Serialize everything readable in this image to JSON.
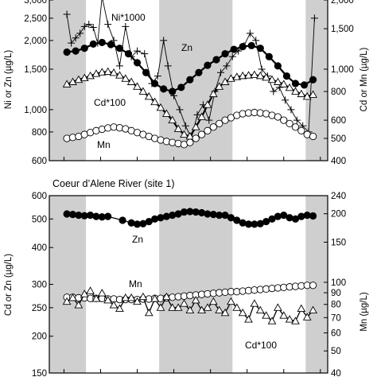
{
  "chart_data": [
    {
      "type": "line",
      "title": "",
      "log_scale": true,
      "shaded_bands_x": [
        [
          0,
          2.5
        ],
        [
          7.5,
          12.5
        ],
        [
          17.5,
          19
        ]
      ],
      "x_range": [
        0,
        19
      ],
      "left_axis": {
        "label": "Ni or Zn (µg/L)",
        "ylim": [
          600,
          3000
        ],
        "ticks": [
          600,
          800,
          1000,
          1500,
          2000,
          2500,
          3000
        ],
        "tick_labels": [
          "600",
          "800",
          "1,000",
          "1,500",
          "2,000",
          "2,500",
          "3,000"
        ]
      },
      "right_axis": {
        "label": "Cd or Mn (µg/L)",
        "ylim": [
          400,
          2000
        ],
        "ticks": [
          400,
          500,
          600,
          800,
          1000,
          1500,
          2000
        ],
        "tick_labels": [
          "400",
          "500",
          "600",
          "800",
          "1,000",
          "1,500",
          "2,000"
        ]
      },
      "series": [
        {
          "name": "Ni*1000",
          "axis": "left",
          "marker": "plus",
          "x": [
            1.2,
            1.5,
            1.8,
            2.1,
            2.4,
            2.7,
            3.0,
            3.3,
            3.6,
            4.0,
            4.4,
            4.8,
            5.2,
            5.6,
            6.0,
            6.5,
            7.0,
            7.4,
            7.8,
            8.1,
            8.5,
            8.9,
            9.3,
            9.7,
            10.1,
            10.5,
            10.9,
            11.3,
            11.7,
            12.1,
            12.5,
            12.9,
            13.3,
            13.7,
            14.1,
            14.5,
            14.9,
            15.3,
            15.7,
            16.1,
            16.5,
            16.9,
            17.3,
            17.7,
            18.1
          ],
          "y": [
            2600,
            1950,
            2050,
            2150,
            2300,
            2350,
            2280,
            1950,
            3100,
            2350,
            2000,
            1550,
            2300,
            1700,
            1800,
            1750,
            1300,
            1400,
            2000,
            1550,
            1150,
            1000,
            850,
            750,
            950,
            1050,
            900,
            1200,
            1450,
            1550,
            1700,
            1800,
            1900,
            2150,
            2000,
            1500,
            1400,
            1200,
            1250,
            1100,
            1000,
            900,
            850,
            800,
            2500
          ]
        },
        {
          "name": "Zn",
          "axis": "left",
          "marker": "filled-circle",
          "x": [
            1.2,
            1.8,
            2.4,
            3.0,
            3.6,
            4.2,
            4.8,
            5.4,
            6.0,
            6.6,
            7.2,
            7.8,
            8.4,
            9.0,
            9.6,
            10.2,
            10.8,
            11.4,
            12.0,
            12.6,
            13.2,
            13.8,
            14.4,
            15.0,
            15.6,
            16.2,
            16.8,
            17.4,
            18.0
          ],
          "y": [
            1780,
            1800,
            1850,
            1930,
            1960,
            1920,
            1850,
            1750,
            1600,
            1450,
            1300,
            1230,
            1200,
            1250,
            1350,
            1450,
            1560,
            1650,
            1750,
            1830,
            1880,
            1900,
            1850,
            1700,
            1550,
            1400,
            1300,
            1280,
            1350
          ]
        },
        {
          "name": "Cd*100",
          "axis": "right",
          "marker": "triangle",
          "x": [
            1.2,
            1.6,
            2.0,
            2.4,
            2.8,
            3.2,
            3.6,
            4.0,
            4.4,
            4.8,
            5.2,
            5.6,
            6.0,
            6.4,
            6.8,
            7.2,
            7.6,
            8.0,
            8.4,
            8.8,
            9.2,
            9.6,
            10.0,
            10.4,
            10.8,
            11.2,
            11.6,
            12.0,
            12.4,
            12.8,
            13.2,
            13.6,
            14.0,
            14.4,
            14.8,
            15.2,
            15.6,
            16.0,
            16.4,
            16.8,
            17.2,
            17.6,
            18.0
          ],
          "y": [
            860,
            880,
            900,
            915,
            935,
            955,
            970,
            975,
            965,
            940,
            910,
            880,
            840,
            800,
            760,
            720,
            680,
            640,
            600,
            550,
            520,
            510,
            560,
            620,
            700,
            780,
            840,
            880,
            910,
            925,
            935,
            940,
            945,
            935,
            920,
            900,
            880,
            860,
            830,
            800,
            780,
            760,
            775
          ]
        },
        {
          "name": "Mn",
          "axis": "right",
          "marker": "open-circle",
          "x": [
            1.2,
            1.6,
            2.0,
            2.4,
            2.8,
            3.2,
            3.6,
            4.0,
            4.4,
            4.8,
            5.2,
            5.6,
            6.0,
            6.4,
            6.8,
            7.2,
            7.6,
            8.0,
            8.4,
            8.8,
            9.2,
            9.6,
            10.0,
            10.4,
            10.8,
            11.2,
            11.6,
            12.0,
            12.4,
            12.8,
            13.2,
            13.6,
            14.0,
            14.4,
            14.8,
            15.2,
            15.6,
            16.0,
            16.4,
            16.8,
            17.2,
            17.6,
            18.0
          ],
          "y": [
            500,
            505,
            510,
            520,
            530,
            540,
            548,
            555,
            560,
            556,
            550,
            540,
            530,
            520,
            510,
            500,
            492,
            485,
            480,
            475,
            470,
            480,
            500,
            520,
            540,
            560,
            580,
            600,
            615,
            630,
            640,
            645,
            648,
            645,
            640,
            630,
            620,
            600,
            580,
            560,
            540,
            520,
            510
          ]
        }
      ]
    },
    {
      "type": "line",
      "title": "Coeur d’Alene River (site 1)",
      "log_scale": true,
      "shaded_bands_x": [
        [
          0,
          2.5
        ],
        [
          7.5,
          12.5
        ],
        [
          17.5,
          19
        ]
      ],
      "x_range": [
        0,
        19
      ],
      "left_axis": {
        "label": "Cd or Zn (µg/L)",
        "ylim": [
          150,
          600
        ],
        "ticks": [
          150,
          200,
          250,
          300,
          400,
          500,
          600
        ],
        "tick_labels": [
          "150",
          "200",
          "250",
          "300",
          "400",
          "500",
          "600"
        ]
      },
      "right_axis": {
        "label": "Mn (µg/L)",
        "ylim": [
          40,
          240
        ],
        "ticks": [
          40,
          50,
          60,
          70,
          80,
          90,
          100,
          150,
          200,
          240
        ],
        "tick_labels": [
          "40",
          "50",
          "60",
          "70",
          "80",
          "90",
          "100",
          "150",
          "200",
          "240"
        ]
      },
      "series": [
        {
          "name": "Zn",
          "axis": "left",
          "marker": "filled-circle",
          "x": [
            1.2,
            1.6,
            2.0,
            2.4,
            2.8,
            3.2,
            3.6,
            4.0,
            5.0,
            5.6,
            6.0,
            6.4,
            6.8,
            7.2,
            7.6,
            8.0,
            8.4,
            8.8,
            9.2,
            9.6,
            10.0,
            10.4,
            10.8,
            11.2,
            11.6,
            12.0,
            12.4,
            12.8,
            13.2,
            13.6,
            14.0,
            14.4,
            14.8,
            15.2,
            15.6,
            16.0,
            16.4,
            16.8,
            17.2,
            17.6,
            18.0
          ],
          "y": [
            520,
            518,
            515,
            513,
            515,
            510,
            508,
            510,
            495,
            485,
            480,
            482,
            490,
            500,
            505,
            510,
            515,
            520,
            528,
            530,
            528,
            525,
            520,
            518,
            515,
            515,
            505,
            495,
            485,
            480,
            480,
            482,
            490,
            500,
            510,
            515,
            505,
            500,
            510,
            515,
            512
          ]
        },
        {
          "name": "Mn",
          "axis": "right",
          "marker": "open-circle",
          "x": [
            1.2,
            1.6,
            2.0,
            2.4,
            2.8,
            3.2,
            3.6,
            4.0,
            4.4,
            4.8,
            5.2,
            5.6,
            6.0,
            6.4,
            6.8,
            7.2,
            7.6,
            8.0,
            8.4,
            8.8,
            9.2,
            9.6,
            10.0,
            10.4,
            10.8,
            11.2,
            11.6,
            12.0,
            12.4,
            12.8,
            13.2,
            13.6,
            14.0,
            14.4,
            14.8,
            15.2,
            15.6,
            16.0,
            16.4,
            16.8,
            17.2,
            17.6,
            18.0
          ],
          "y": [
            86,
            86,
            85.5,
            85.5,
            85,
            85,
            85,
            84.5,
            84.5,
            84,
            84,
            84,
            84,
            84.5,
            84.5,
            85,
            85,
            85.5,
            86,
            86.5,
            87,
            87.5,
            88,
            88.5,
            89,
            89.5,
            90,
            90.5,
            91,
            91,
            91.5,
            92,
            92.5,
            93,
            93.5,
            94,
            94.5,
            95,
            95.5,
            96,
            96.5,
            97,
            97
          ]
        },
        {
          "name": "Cd*100",
          "axis": "left",
          "marker": "triangle",
          "x": [
            1.2,
            1.6,
            2.0,
            2.4,
            2.8,
            3.2,
            3.6,
            4.0,
            4.4,
            4.8,
            5.2,
            5.6,
            6.0,
            6.4,
            6.8,
            7.2,
            7.6,
            8.0,
            8.4,
            8.8,
            9.2,
            9.6,
            10.0,
            10.4,
            10.8,
            11.2,
            11.6,
            12.0,
            12.4,
            12.8,
            13.2,
            13.6,
            14.0,
            14.4,
            14.8,
            15.2,
            15.6,
            16.0,
            16.4,
            16.8,
            17.2,
            17.6,
            18.0
          ],
          "y": [
            262,
            270,
            255,
            278,
            285,
            268,
            280,
            265,
            255,
            248,
            270,
            270,
            262,
            272,
            240,
            268,
            250,
            272,
            250,
            250,
            258,
            245,
            265,
            245,
            250,
            262,
            245,
            240,
            262,
            250,
            240,
            228,
            258,
            245,
            235,
            225,
            250,
            235,
            228,
            225,
            248,
            232,
            245
          ]
        }
      ]
    }
  ],
  "labels": {
    "top_ni": "Ni*1000",
    "top_zn": "Zn",
    "top_cd": "Cd*100",
    "top_mn": "Mn",
    "bottom_zn": "Zn",
    "bottom_mn": "Mn",
    "bottom_cd": "Cd*100"
  }
}
